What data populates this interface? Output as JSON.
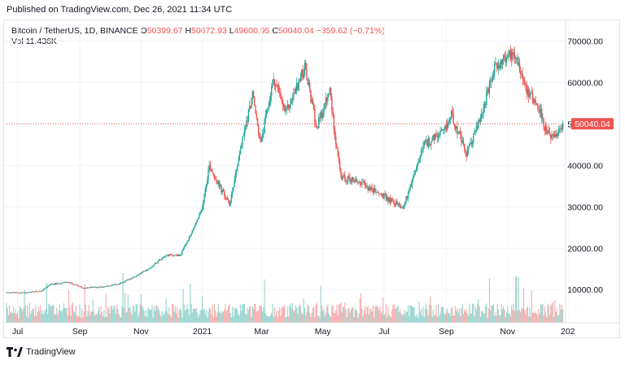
{
  "header": {
    "published_text": "Published on TradingView.com, Dec 26, 2021 11:34 UTC"
  },
  "legend": {
    "symbol": "Bitcoin / TetherUS, 1D, BINANCE",
    "open_label": "O",
    "open": "50399.67",
    "high_label": "H",
    "high": "50672.93",
    "low_label": "L",
    "low": "49600.95",
    "close_label": "C",
    "close": "50040.04",
    "change": "−359.62 (−0.71%)",
    "vol_label": "Vol",
    "vol_value": "11.436K"
  },
  "price_label": "50040.04",
  "footer": {
    "logo_text": "TradingView"
  },
  "colors": {
    "up": "#26a69a",
    "down": "#ef5350",
    "grid": "#f0f3fa"
  },
  "chart_data": {
    "type": "candlestick",
    "y_ticks": [
      "70000.00",
      "60000.00",
      "50000.00",
      "40000.00",
      "30000.00",
      "20000.00",
      "10000.00"
    ],
    "y_tick_values": [
      70000,
      60000,
      50000,
      40000,
      30000,
      20000,
      10000
    ],
    "x_ticks": [
      "Jul",
      "Sep",
      "Nov",
      "2021",
      "Mar",
      "May",
      "Jul",
      "Sep",
      "Nov",
      "202"
    ],
    "x_tick_dates": [
      "2020-07-01",
      "2020-09-01",
      "2020-11-01",
      "2021-01-01",
      "2021-03-01",
      "2021-05-01",
      "2021-07-01",
      "2021-09-01",
      "2021-11-01",
      "2022-01-01"
    ],
    "ylim": [
      2000,
      75000
    ],
    "last_close": 50040.04,
    "series": [
      {
        "date": "2020-06-20",
        "close": 9300
      },
      {
        "date": "2020-07-10",
        "close": 9250
      },
      {
        "date": "2020-07-25",
        "close": 9700
      },
      {
        "date": "2020-08-02",
        "close": 11200
      },
      {
        "date": "2020-08-20",
        "close": 11800
      },
      {
        "date": "2020-09-04",
        "close": 10400
      },
      {
        "date": "2020-09-25",
        "close": 10700
      },
      {
        "date": "2020-10-10",
        "close": 11300
      },
      {
        "date": "2020-10-25",
        "close": 13000
      },
      {
        "date": "2020-11-10",
        "close": 15300
      },
      {
        "date": "2020-11-25",
        "close": 18300
      },
      {
        "date": "2020-12-10",
        "close": 18300
      },
      {
        "date": "2020-12-20",
        "close": 23000
      },
      {
        "date": "2020-12-31",
        "close": 29000
      },
      {
        "date": "2021-01-08",
        "close": 40000
      },
      {
        "date": "2021-01-20",
        "close": 34000
      },
      {
        "date": "2021-01-28",
        "close": 30500
      },
      {
        "date": "2021-02-08",
        "close": 44000
      },
      {
        "date": "2021-02-20",
        "close": 57000
      },
      {
        "date": "2021-02-28",
        "close": 45000
      },
      {
        "date": "2021-03-13",
        "close": 61000
      },
      {
        "date": "2021-03-25",
        "close": 52500
      },
      {
        "date": "2021-04-13",
        "close": 63500
      },
      {
        "date": "2021-04-25",
        "close": 49000
      },
      {
        "date": "2021-05-08",
        "close": 58000
      },
      {
        "date": "2021-05-12",
        "close": 49500
      },
      {
        "date": "2021-05-19",
        "close": 37000
      },
      {
        "date": "2021-06-01",
        "close": 36500
      },
      {
        "date": "2021-06-20",
        "close": 34000
      },
      {
        "date": "2021-07-20",
        "close": 29800
      },
      {
        "date": "2021-08-10",
        "close": 45000
      },
      {
        "date": "2021-08-30",
        "close": 48000
      },
      {
        "date": "2021-09-06",
        "close": 52500
      },
      {
        "date": "2021-09-21",
        "close": 42500
      },
      {
        "date": "2021-10-05",
        "close": 51500
      },
      {
        "date": "2021-10-20",
        "close": 64000
      },
      {
        "date": "2021-11-08",
        "close": 67500
      },
      {
        "date": "2021-11-20",
        "close": 58500
      },
      {
        "date": "2021-12-03",
        "close": 53500
      },
      {
        "date": "2021-12-10",
        "close": 47500
      },
      {
        "date": "2021-12-20",
        "close": 46700
      },
      {
        "date": "2021-12-26",
        "close": 50040
      }
    ]
  }
}
